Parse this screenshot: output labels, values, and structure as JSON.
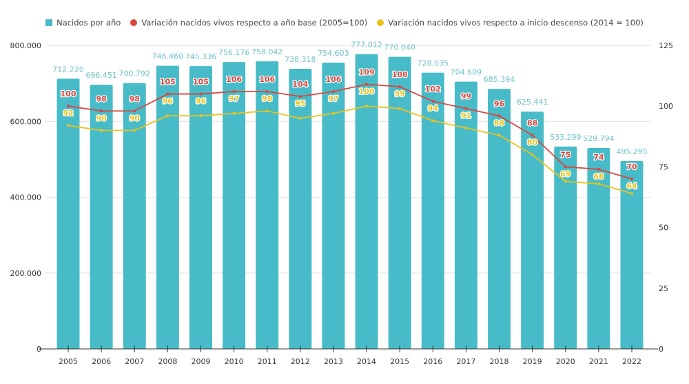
{
  "chart_data": {
    "type": "bar",
    "title": "",
    "xlabel": "",
    "ylabel": "",
    "y2label": "",
    "ylim": [
      0,
      800000
    ],
    "y2lim": [
      0,
      125
    ],
    "grid": true,
    "legend_position": "top-center",
    "categories": [
      "2005",
      "2006",
      "2007",
      "2008",
      "2009",
      "2010",
      "2011",
      "2012",
      "2013",
      "2014",
      "2015",
      "2016",
      "2017",
      "2018",
      "2019",
      "2020",
      "2021",
      "2022"
    ],
    "yticks": [
      {
        "value": 0,
        "label": "0"
      },
      {
        "value": 200000,
        "label": "200.000"
      },
      {
        "value": 400000,
        "label": "400.000"
      },
      {
        "value": 600000,
        "label": "600.000"
      },
      {
        "value": 800000,
        "label": "800.000"
      }
    ],
    "y2ticks": [
      {
        "value": 0,
        "label": "0"
      },
      {
        "value": 25,
        "label": "25"
      },
      {
        "value": 50,
        "label": "50"
      },
      {
        "value": 75,
        "label": "75"
      },
      {
        "value": 100,
        "label": "100"
      },
      {
        "value": 125,
        "label": "125"
      }
    ],
    "series": [
      {
        "name": "Nacidos por año",
        "type": "bar",
        "axis": "left",
        "color": "#47BCC8",
        "values": [
          712220,
          696451,
          700792,
          746460,
          745336,
          756176,
          758042,
          738318,
          754603,
          777012,
          770040,
          728035,
          704609,
          685394,
          625441,
          533299,
          529794,
          495295
        ],
        "labels": [
          "712.220",
          "696.451",
          "700.792",
          "746.460",
          "745.336",
          "756.176",
          "758.042",
          "738.318",
          "754.603",
          "777.012",
          "770.040",
          "728.035",
          "704.609",
          "685.394",
          "625.441",
          "533.299",
          "529.794",
          "495.295"
        ]
      },
      {
        "name": "Variación nacidos vivos respecto a año base (2005=100)",
        "type": "line",
        "axis": "right",
        "color": "#D9463E",
        "values": [
          100,
          98,
          98,
          105,
          105,
          106,
          106,
          104,
          106,
          109,
          108,
          102,
          99,
          96,
          88,
          75,
          74,
          70
        ]
      },
      {
        "name": "Variación nacidos vivos respecto a inicio descenso (2014 = 100)",
        "type": "line",
        "axis": "right",
        "color": "#E9C21E",
        "values": [
          92,
          90,
          90,
          96,
          96,
          97,
          98,
          95,
          97,
          100,
          99,
          94,
          91,
          88,
          80,
          69,
          68,
          64
        ]
      }
    ]
  }
}
